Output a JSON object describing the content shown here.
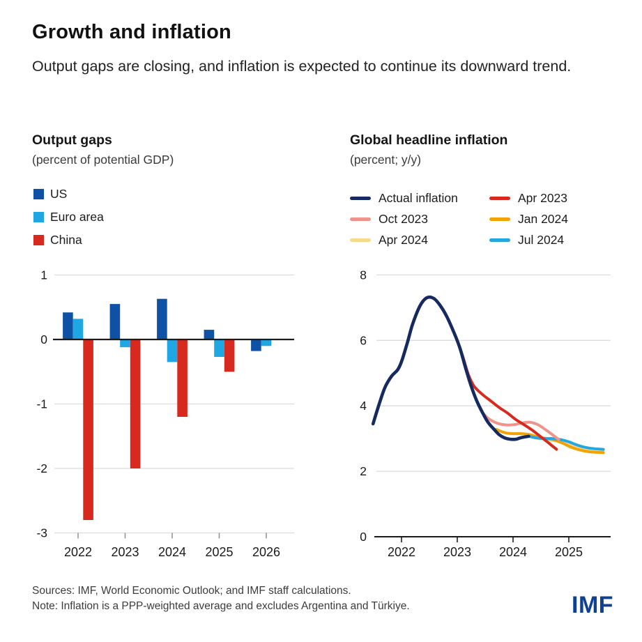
{
  "header": {
    "title": "Growth and inflation",
    "subtitle": "Output gaps are closing, and inflation is expected to continue its downward trend."
  },
  "footer": {
    "sources": "Sources: IMF, World Economic Outlook; and IMF staff calculations.",
    "note": "Note: Inflation is a PPP-weighted average and excludes Argentina and Türkiye.",
    "logo": "IMF"
  },
  "colors": {
    "us": "#0f52a5",
    "euro_area": "#1fa7e4",
    "china": "#d8291f",
    "actual": "#172a60",
    "apr2023": "#d8291f",
    "oct2023": "#f0938b",
    "jan2024": "#f2a202",
    "apr2024": "#f8da8d",
    "jul2024": "#23a7e0",
    "grid": "#dcdcdc",
    "axis": "#1a1a1a",
    "tick": "#8f8f8f",
    "imf_blue": "#0e4191"
  },
  "chart_data": [
    {
      "id": "output-gaps",
      "type": "bar",
      "title": "Output gaps",
      "subtitle": "(percent of potential GDP)",
      "categories": [
        "2022",
        "2023",
        "2024",
        "2025",
        "2026"
      ],
      "ylim": [
        -3,
        1
      ],
      "yticks": [
        1,
        0,
        -1,
        -2,
        -3
      ],
      "grid": true,
      "legend_position": "top-left-stacked",
      "series": [
        {
          "name": "US",
          "color": "#0f52a5",
          "values": [
            0.42,
            0.55,
            0.63,
            0.15,
            -0.18
          ]
        },
        {
          "name": "Euro area",
          "color": "#1fa7e4",
          "values": [
            0.32,
            -0.12,
            -0.35,
            -0.27,
            -0.1
          ]
        },
        {
          "name": "China",
          "color": "#d8291f",
          "values": [
            -2.8,
            -2.0,
            -1.2,
            -0.5,
            0.0
          ]
        }
      ]
    },
    {
      "id": "global-headline-inflation",
      "type": "line",
      "title": "Global headline inflation",
      "subtitle": "(percent; y/y)",
      "ylim": [
        0,
        8
      ],
      "yticks": [
        8,
        6,
        4,
        2,
        0
      ],
      "xticks": [
        "2022",
        "2023",
        "2024",
        "2025"
      ],
      "xrange": [
        2021.45,
        2025.65
      ],
      "grid": true,
      "legend_position": "top-two-columns",
      "legend_order": [
        "Actual inflation",
        "Apr 2023",
        "Oct 2023",
        "Jan 2024",
        "Apr 2024",
        "Jul 2024"
      ],
      "series": [
        {
          "name": "Apr 2024",
          "color": "#f8da8d",
          "width": 4,
          "points": [
            [
              2024.25,
              3.1
            ],
            [
              2024.4,
              3.02
            ],
            [
              2024.55,
              2.98
            ],
            [
              2024.7,
              2.95
            ],
            [
              2024.85,
              2.9
            ],
            [
              2025.0,
              2.83
            ],
            [
              2025.15,
              2.75
            ],
            [
              2025.3,
              2.7
            ],
            [
              2025.45,
              2.67
            ],
            [
              2025.62,
              2.65
            ]
          ]
        },
        {
          "name": "Jan 2024",
          "color": "#f2a202",
          "width": 4,
          "points": [
            [
              2023.7,
              3.28
            ],
            [
              2023.85,
              3.18
            ],
            [
              2024.0,
              3.15
            ],
            [
              2024.15,
              3.15
            ],
            [
              2024.3,
              3.12
            ],
            [
              2024.45,
              3.05
            ],
            [
              2024.6,
              3.0
            ],
            [
              2024.75,
              2.95
            ],
            [
              2024.9,
              2.85
            ],
            [
              2025.05,
              2.73
            ],
            [
              2025.2,
              2.65
            ],
            [
              2025.35,
              2.6
            ],
            [
              2025.5,
              2.58
            ],
            [
              2025.62,
              2.57
            ]
          ]
        },
        {
          "name": "Jul 2024",
          "color": "#23a7e0",
          "width": 4,
          "points": [
            [
              2024.28,
              3.07
            ],
            [
              2024.42,
              3.02
            ],
            [
              2024.56,
              3.0
            ],
            [
              2024.7,
              3.0
            ],
            [
              2024.85,
              2.97
            ],
            [
              2025.0,
              2.9
            ],
            [
              2025.12,
              2.82
            ],
            [
              2025.25,
              2.75
            ],
            [
              2025.4,
              2.7
            ],
            [
              2025.62,
              2.67
            ]
          ]
        },
        {
          "name": "Oct 2023",
          "color": "#f0938b",
          "width": 4,
          "points": [
            [
              2023.45,
              3.8
            ],
            [
              2023.55,
              3.62
            ],
            [
              2023.7,
              3.48
            ],
            [
              2023.85,
              3.42
            ],
            [
              2024.0,
              3.42
            ],
            [
              2024.15,
              3.47
            ],
            [
              2024.3,
              3.5
            ],
            [
              2024.45,
              3.42
            ],
            [
              2024.6,
              3.25
            ],
            [
              2024.72,
              3.1
            ],
            [
              2024.82,
              2.97
            ]
          ]
        },
        {
          "name": "Apr 2023",
          "color": "#d8291f",
          "width": 4,
          "points": [
            [
              2023.0,
              6.0
            ],
            [
              2023.1,
              5.5
            ],
            [
              2023.2,
              4.95
            ],
            [
              2023.3,
              4.6
            ],
            [
              2023.45,
              4.35
            ],
            [
              2023.6,
              4.15
            ],
            [
              2023.75,
              3.95
            ],
            [
              2023.9,
              3.78
            ],
            [
              2024.05,
              3.58
            ],
            [
              2024.2,
              3.42
            ],
            [
              2024.35,
              3.25
            ],
            [
              2024.5,
              3.05
            ],
            [
              2024.65,
              2.85
            ],
            [
              2024.78,
              2.67
            ]
          ]
        },
        {
          "name": "Actual inflation",
          "color": "#172a60",
          "width": 4.6,
          "points": [
            [
              2021.49,
              3.45
            ],
            [
              2021.58,
              3.95
            ],
            [
              2021.7,
              4.55
            ],
            [
              2021.82,
              4.9
            ],
            [
              2021.93,
              5.1
            ],
            [
              2022.0,
              5.35
            ],
            [
              2022.1,
              5.9
            ],
            [
              2022.2,
              6.5
            ],
            [
              2022.33,
              7.05
            ],
            [
              2022.45,
              7.3
            ],
            [
              2022.58,
              7.28
            ],
            [
              2022.7,
              7.05
            ],
            [
              2022.82,
              6.7
            ],
            [
              2022.95,
              6.2
            ],
            [
              2023.05,
              5.75
            ],
            [
              2023.15,
              5.15
            ],
            [
              2023.25,
              4.6
            ],
            [
              2023.35,
              4.15
            ],
            [
              2023.45,
              3.8
            ],
            [
              2023.55,
              3.5
            ],
            [
              2023.65,
              3.3
            ],
            [
              2023.75,
              3.12
            ],
            [
              2023.85,
              3.02
            ],
            [
              2023.95,
              2.98
            ],
            [
              2024.05,
              2.98
            ],
            [
              2024.15,
              3.03
            ],
            [
              2024.28,
              3.07
            ]
          ]
        }
      ]
    }
  ]
}
